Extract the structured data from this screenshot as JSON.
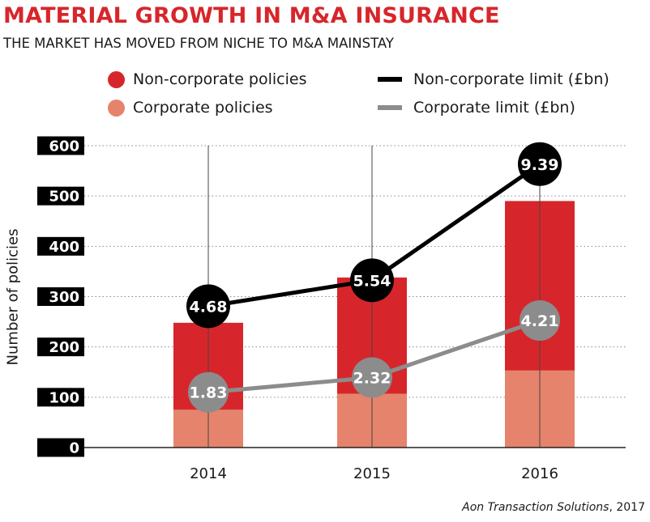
{
  "title": "MATERIAL GROWTH IN  M&A INSURANCE",
  "subtitle": "THE MARKET HAS MOVED FROM NICHE TO M&A MAINSTAY",
  "source": {
    "name": "Aon Transaction Solutions",
    "year": ", 2017"
  },
  "colors": {
    "title": "#d7262b",
    "non_corporate_bar": "#d7262b",
    "corporate_bar": "#e6836c",
    "non_corporate_line": "#000000",
    "corporate_line": "#8c8c8c",
    "tick_box": "#000000",
    "grid": "#8a8a8a"
  },
  "legend": [
    {
      "label": "Non-corporate policies",
      "kind": "dot",
      "color": "#d7262b"
    },
    {
      "label": "Corporate policies",
      "kind": "dot",
      "color": "#e6836c"
    },
    {
      "label": "Non-corporate limit (£bn)",
      "kind": "line",
      "color": "#000000"
    },
    {
      "label": "Corporate limit (£bn)",
      "kind": "line",
      "color": "#8c8c8c"
    }
  ],
  "chart_data": {
    "type": "bar",
    "stacked": true,
    "title": "MATERIAL GROWTH IN  M&A INSURANCE",
    "subtitle": "THE MARKET HAS MOVED FROM NICHE TO M&A MAINSTAY",
    "categories": [
      "2014",
      "2015",
      "2016"
    ],
    "ylabel": "Number of policies",
    "xlabel": "",
    "ylim": [
      0,
      600
    ],
    "yticks": [
      "0",
      "100",
      "200",
      "300",
      "400",
      "500",
      "600"
    ],
    "grid": true,
    "legend_position": "top",
    "series": [
      {
        "name": "Corporate policies",
        "type": "bar",
        "values": [
          75,
          107,
          153
        ]
      },
      {
        "name": "Non-corporate policies",
        "type": "bar",
        "values": [
          173,
          231,
          337
        ]
      },
      {
        "name": "Non-corporate limit (£bn)",
        "type": "line",
        "values": [
          4.68,
          5.54,
          9.39
        ],
        "labels": [
          "4.68",
          "5.54",
          "9.39"
        ],
        "plot_scale_max": 10.0
      },
      {
        "name": "Corporate limit (£bn)",
        "type": "line",
        "values": [
          1.83,
          2.32,
          4.21
        ],
        "labels": [
          "1.83",
          "2.32",
          "4.21"
        ],
        "plot_scale_max": 10.0
      }
    ]
  }
}
